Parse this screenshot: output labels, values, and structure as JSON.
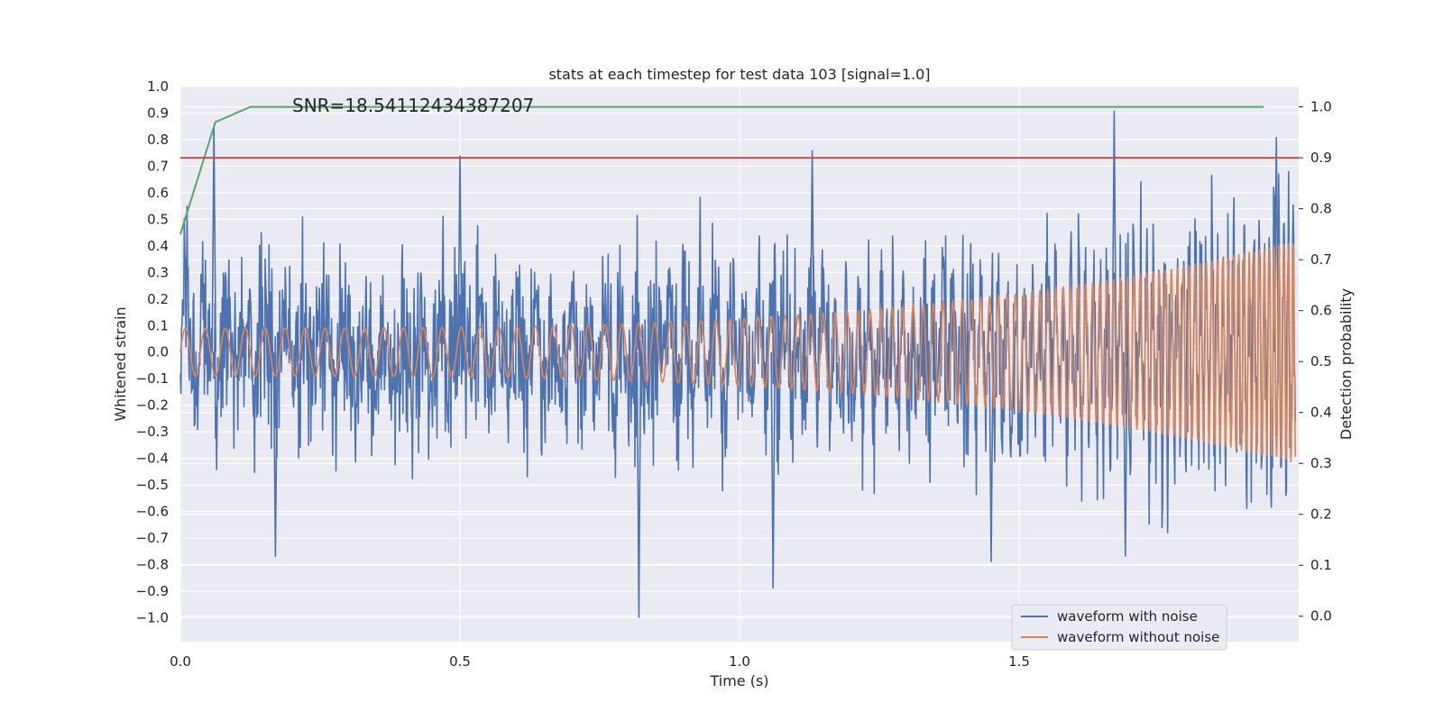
{
  "chart_data": {
    "type": "line",
    "title": "stats at each timestep for test data 103 [signal=1.0]",
    "xlabel": "Time (s)",
    "ylabel": "Whitened strain",
    "y2label": "Detection probability",
    "annotation": "SNR=18.54112434387207",
    "xlim": [
      0.0,
      2.0
    ],
    "ylim": [
      -1.09,
      1.0
    ],
    "y2lim": [
      -0.05,
      1.04
    ],
    "x_ticks": [
      "0.0",
      "0.5",
      "1.0",
      "1.5"
    ],
    "x_tick_values": [
      0.0,
      0.5,
      1.0,
      1.5
    ],
    "y_ticks": [
      "1.0",
      "0.9",
      "0.8",
      "0.7",
      "0.6",
      "0.5",
      "0.4",
      "0.3",
      "0.2",
      "0.1",
      "0.0",
      "−0.1",
      "−0.2",
      "−0.3",
      "−0.4",
      "−0.5",
      "−0.6",
      "−0.7",
      "−0.8",
      "−0.9",
      "−1.0"
    ],
    "y_tick_values": [
      1.0,
      0.9,
      0.8,
      0.7,
      0.6,
      0.5,
      0.4,
      0.3,
      0.2,
      0.1,
      0.0,
      -0.1,
      -0.2,
      -0.3,
      -0.4,
      -0.5,
      -0.6,
      -0.7,
      -0.8,
      -0.9,
      -1.0
    ],
    "y2_ticks": [
      "1.0",
      "0.9",
      "0.8",
      "0.7",
      "0.6",
      "0.5",
      "0.4",
      "0.3",
      "0.2",
      "0.1",
      "0.0"
    ],
    "y2_tick_values": [
      1.0,
      0.9,
      0.8,
      0.7,
      0.6,
      0.5,
      0.4,
      0.3,
      0.2,
      0.1,
      0.0
    ],
    "grid": true,
    "legend_position": "bottom-right",
    "series": [
      {
        "name": "waveform with noise",
        "color": "#4c72b0",
        "axis": "left",
        "kind": "noisy strain signal, amplitude mostly within ±0.6 with spikes",
        "peaks": [
          {
            "x": 0.06,
            "y": 0.85
          },
          {
            "x": 0.17,
            "y": -0.77
          },
          {
            "x": 0.5,
            "y": 0.74
          },
          {
            "x": 0.82,
            "y": -1.0
          },
          {
            "x": 1.06,
            "y": -0.89
          },
          {
            "x": 1.13,
            "y": 0.76
          },
          {
            "x": 1.45,
            "y": -0.79
          },
          {
            "x": 1.67,
            "y": 0.91
          },
          {
            "x": 1.69,
            "y": -0.77
          },
          {
            "x": 1.96,
            "y": 0.81
          }
        ]
      },
      {
        "name": "waveform without noise",
        "color": "#dd8452",
        "axis": "left",
        "kind": "chirp",
        "amplitude_start": 0.09,
        "amplitude_end": 0.42,
        "freq_start_hz": 28,
        "freq_end_hz": 120
      },
      {
        "name": "",
        "color": "#55a868",
        "axis": "right",
        "kind": "detection probability",
        "x": [
          0.0,
          0.0625,
          0.125,
          0.25,
          0.5,
          0.75,
          1.0,
          1.25,
          1.5,
          1.75,
          1.9375
        ],
        "y": [
          0.75,
          0.97,
          1.0,
          1.0,
          1.0,
          1.0,
          1.0,
          1.0,
          1.0,
          1.0,
          1.0
        ]
      },
      {
        "name": "",
        "color": "#c44e52",
        "axis": "right",
        "kind": "threshold",
        "y": 0.9
      }
    ]
  }
}
